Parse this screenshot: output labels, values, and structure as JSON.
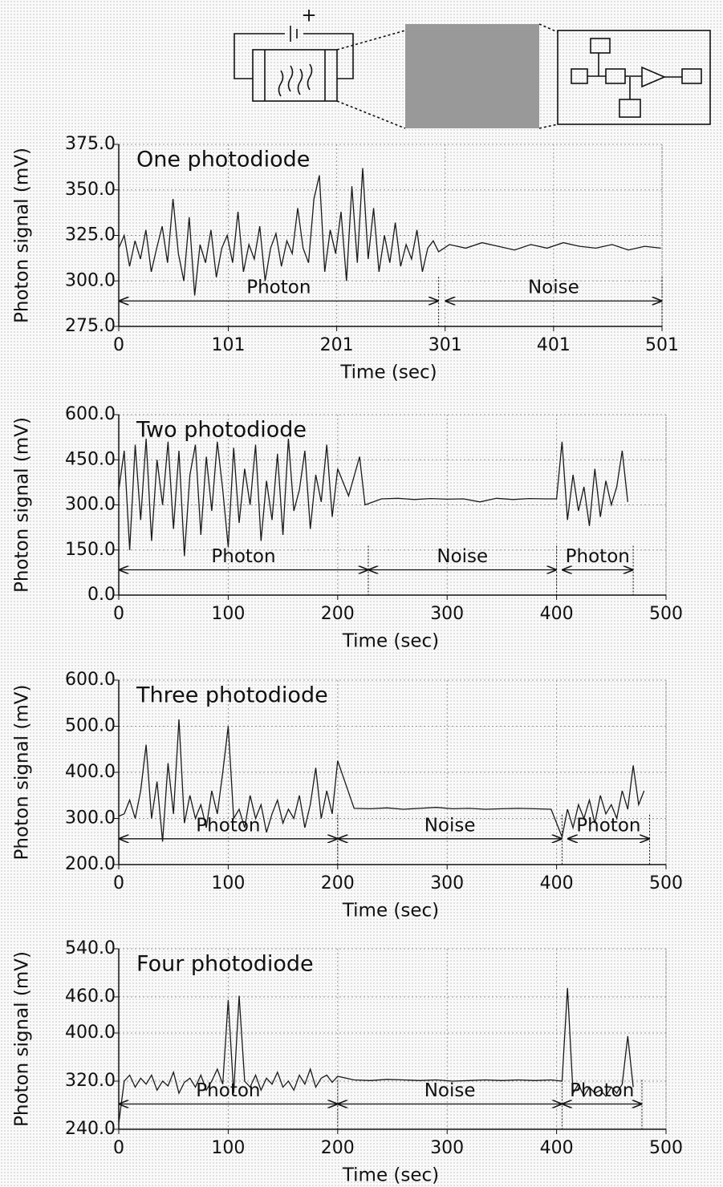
{
  "diagram": {
    "polarity_label": "+"
  },
  "chart_data": [
    {
      "type": "line",
      "title": "One photodiode",
      "xlabel": "Time (sec)",
      "ylabel": "Photon signal (mV)",
      "color": "#1a1a1a",
      "grid": true,
      "xlim": [
        0,
        501
      ],
      "xticks": [
        0,
        101,
        201,
        301,
        401,
        501
      ],
      "ylim": [
        275,
        375
      ],
      "yticks": [
        {
          "value": 275,
          "label": "275.0"
        },
        {
          "value": 300,
          "label": "300.0"
        },
        {
          "value": 325,
          "label": "325.0"
        },
        {
          "value": 350,
          "label": "350.0"
        },
        {
          "value": 375,
          "label": "375.0"
        }
      ],
      "x": [
        0,
        5,
        10,
        15,
        20,
        25,
        30,
        35,
        40,
        45,
        50,
        55,
        60,
        65,
        70,
        75,
        80,
        85,
        90,
        95,
        100,
        105,
        110,
        115,
        120,
        125,
        130,
        135,
        140,
        145,
        150,
        155,
        160,
        165,
        170,
        175,
        180,
        185,
        190,
        195,
        200,
        205,
        210,
        215,
        220,
        225,
        230,
        235,
        240,
        245,
        250,
        255,
        260,
        265,
        270,
        275,
        280,
        285,
        290,
        295,
        305,
        320,
        335,
        350,
        365,
        380,
        395,
        410,
        425,
        440,
        455,
        470,
        485,
        500
      ],
      "values": [
        318,
        325,
        308,
        322,
        312,
        328,
        305,
        318,
        330,
        310,
        345,
        315,
        300,
        335,
        292,
        320,
        310,
        328,
        302,
        318,
        325,
        310,
        338,
        305,
        320,
        312,
        330,
        300,
        318,
        326,
        308,
        322,
        315,
        340,
        318,
        310,
        345,
        358,
        305,
        328,
        315,
        338,
        300,
        352,
        310,
        362,
        312,
        340,
        305,
        325,
        310,
        332,
        308,
        320,
        312,
        328,
        305,
        318,
        322,
        316,
        320,
        318,
        321,
        319,
        317,
        320,
        318,
        321,
        319,
        318,
        320,
        317,
        319,
        318
      ],
      "annotations": [
        {
          "text": "Photon",
          "span": [
            0,
            295
          ]
        },
        {
          "text": "Noise",
          "span": [
            301,
            501
          ]
        }
      ]
    },
    {
      "type": "line",
      "title": "Two photodiode",
      "xlabel": "Time (sec)",
      "ylabel": "Photon signal (mV)",
      "color": "#1a1a1a",
      "grid": true,
      "xlim": [
        0,
        500
      ],
      "xticks": [
        0,
        100,
        200,
        300,
        400,
        500
      ],
      "ylim": [
        0,
        600
      ],
      "yticks": [
        {
          "value": 0,
          "label": "0.0"
        },
        {
          "value": 150,
          "label": "150.0"
        },
        {
          "value": 300,
          "label": "300.0"
        },
        {
          "value": 450,
          "label": "450.0"
        },
        {
          "value": 600,
          "label": "600.0"
        }
      ],
      "x": [
        0,
        5,
        10,
        15,
        20,
        25,
        30,
        35,
        40,
        45,
        50,
        55,
        60,
        65,
        70,
        75,
        80,
        85,
        90,
        95,
        100,
        105,
        110,
        115,
        120,
        125,
        130,
        135,
        140,
        145,
        150,
        155,
        160,
        165,
        170,
        175,
        180,
        185,
        190,
        195,
        200,
        210,
        220,
        225,
        240,
        255,
        270,
        285,
        300,
        315,
        330,
        345,
        360,
        375,
        390,
        400,
        405,
        410,
        415,
        420,
        425,
        430,
        435,
        440,
        445,
        450,
        455,
        460,
        465
      ],
      "values": [
        350,
        480,
        150,
        500,
        250,
        520,
        180,
        450,
        300,
        510,
        220,
        480,
        130,
        400,
        500,
        200,
        460,
        280,
        510,
        350,
        160,
        490,
        240,
        420,
        300,
        500,
        180,
        380,
        250,
        470,
        200,
        520,
        280,
        350,
        480,
        220,
        400,
        310,
        500,
        260,
        420,
        330,
        460,
        300,
        320,
        322,
        318,
        321,
        319,
        320,
        310,
        322,
        318,
        321,
        320,
        320,
        510,
        250,
        400,
        280,
        360,
        230,
        420,
        260,
        380,
        300,
        360,
        480,
        310
      ],
      "annotations": [
        {
          "text": "Photon",
          "span": [
            0,
            228
          ]
        },
        {
          "text": "Noise",
          "span": [
            228,
            400
          ]
        },
        {
          "text": "Photon",
          "span": [
            405,
            470
          ]
        }
      ]
    },
    {
      "type": "line",
      "title": "Three photodiode",
      "xlabel": "Time (sec)",
      "ylabel": "Photon signal (mV)",
      "color": "#1a1a1a",
      "grid": true,
      "xlim": [
        0,
        500
      ],
      "xticks": [
        0,
        100,
        200,
        300,
        400,
        500
      ],
      "ylim": [
        200,
        600
      ],
      "yticks": [
        {
          "value": 200,
          "label": "200.0"
        },
        {
          "value": 300,
          "label": "300.0"
        },
        {
          "value": 400,
          "label": "400.0"
        },
        {
          "value": 500,
          "label": "500.0"
        },
        {
          "value": 600,
          "label": "600.0"
        }
      ],
      "x": [
        0,
        5,
        10,
        15,
        20,
        25,
        30,
        35,
        40,
        45,
        50,
        55,
        60,
        65,
        70,
        75,
        80,
        85,
        90,
        95,
        100,
        105,
        110,
        115,
        120,
        125,
        130,
        135,
        140,
        145,
        150,
        155,
        160,
        165,
        170,
        175,
        180,
        185,
        190,
        195,
        200,
        215,
        230,
        245,
        260,
        275,
        290,
        305,
        320,
        335,
        350,
        365,
        380,
        395,
        405,
        410,
        415,
        420,
        425,
        430,
        435,
        440,
        445,
        450,
        455,
        460,
        465,
        470,
        475,
        480
      ],
      "values": [
        305,
        310,
        340,
        300,
        360,
        460,
        300,
        380,
        250,
        420,
        310,
        515,
        290,
        350,
        300,
        330,
        280,
        360,
        310,
        400,
        500,
        300,
        320,
        280,
        350,
        300,
        330,
        270,
        310,
        340,
        290,
        320,
        300,
        350,
        280,
        330,
        410,
        300,
        360,
        310,
        425,
        322,
        321,
        323,
        320,
        322,
        324,
        321,
        322,
        320,
        321,
        322,
        321,
        320,
        260,
        320,
        280,
        330,
        300,
        340,
        290,
        350,
        310,
        330,
        300,
        360,
        320,
        415,
        330,
        360
      ],
      "annotations": [
        {
          "text": "Photon",
          "span": [
            0,
            200
          ]
        },
        {
          "text": "Noise",
          "span": [
            200,
            405
          ]
        },
        {
          "text": "Photon",
          "span": [
            410,
            485
          ]
        }
      ]
    },
    {
      "type": "line",
      "title": "Four photodiode",
      "xlabel": "Time (sec)",
      "ylabel": "Photon signal (mV)",
      "color": "#1a1a1a",
      "grid": true,
      "xlim": [
        0,
        500
      ],
      "xticks": [
        0,
        100,
        200,
        300,
        400,
        500
      ],
      "ylim": [
        240,
        540
      ],
      "yticks": [
        {
          "value": 240,
          "label": "240.0"
        },
        {
          "value": 320,
          "label": "320.0"
        },
        {
          "value": 400,
          "label": "400.0"
        },
        {
          "value": 460,
          "label": "460.0"
        },
        {
          "value": 540,
          "label": "540.0"
        }
      ],
      "x": [
        0,
        5,
        10,
        15,
        20,
        25,
        30,
        35,
        40,
        45,
        50,
        55,
        60,
        65,
        70,
        75,
        80,
        85,
        90,
        95,
        100,
        105,
        110,
        115,
        120,
        125,
        130,
        135,
        140,
        145,
        150,
        155,
        160,
        165,
        170,
        175,
        180,
        185,
        190,
        195,
        200,
        215,
        230,
        245,
        260,
        275,
        290,
        305,
        320,
        335,
        350,
        365,
        380,
        395,
        405,
        410,
        415,
        420,
        425,
        430,
        435,
        440,
        445,
        450,
        455,
        460,
        465,
        470
      ],
      "values": [
        250,
        320,
        330,
        310,
        325,
        315,
        330,
        305,
        320,
        312,
        335,
        300,
        318,
        325,
        310,
        330,
        305,
        320,
        340,
        315,
        455,
        300,
        462,
        320,
        310,
        330,
        305,
        325,
        315,
        335,
        310,
        320,
        305,
        330,
        315,
        340,
        310,
        325,
        330,
        318,
        328,
        322,
        321,
        323,
        322,
        321,
        322,
        320,
        321,
        322,
        321,
        322,
        321,
        322,
        320,
        475,
        300,
        315,
        295,
        310,
        300,
        305,
        295,
        310,
        300,
        315,
        395,
        310
      ],
      "annotations": [
        {
          "text": "Photon",
          "span": [
            0,
            200
          ]
        },
        {
          "text": "Noise",
          "span": [
            200,
            405
          ]
        },
        {
          "text": "Photon",
          "span": [
            405,
            478
          ]
        }
      ]
    }
  ]
}
